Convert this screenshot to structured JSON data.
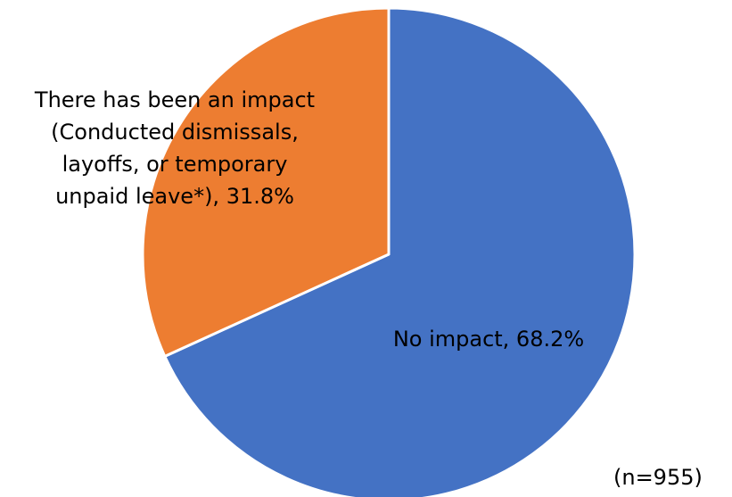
{
  "chart_data": {
    "type": "pie",
    "slices": [
      {
        "label_lines": [
          "No impact, 68.2%"
        ],
        "value": 68.2,
        "color": "#4472C4"
      },
      {
        "label_lines": [
          "There has been an impact",
          "(Conducted dismissals,",
          "layoffs, or temporary",
          "unpaid leave*), 31.8%"
        ],
        "value": 31.8,
        "color": "#ED7D31"
      }
    ],
    "start_angle": "12 o'clock",
    "direction": "clockwise",
    "slice_border_color": "#FFFFFF",
    "note": "(n=955)"
  }
}
